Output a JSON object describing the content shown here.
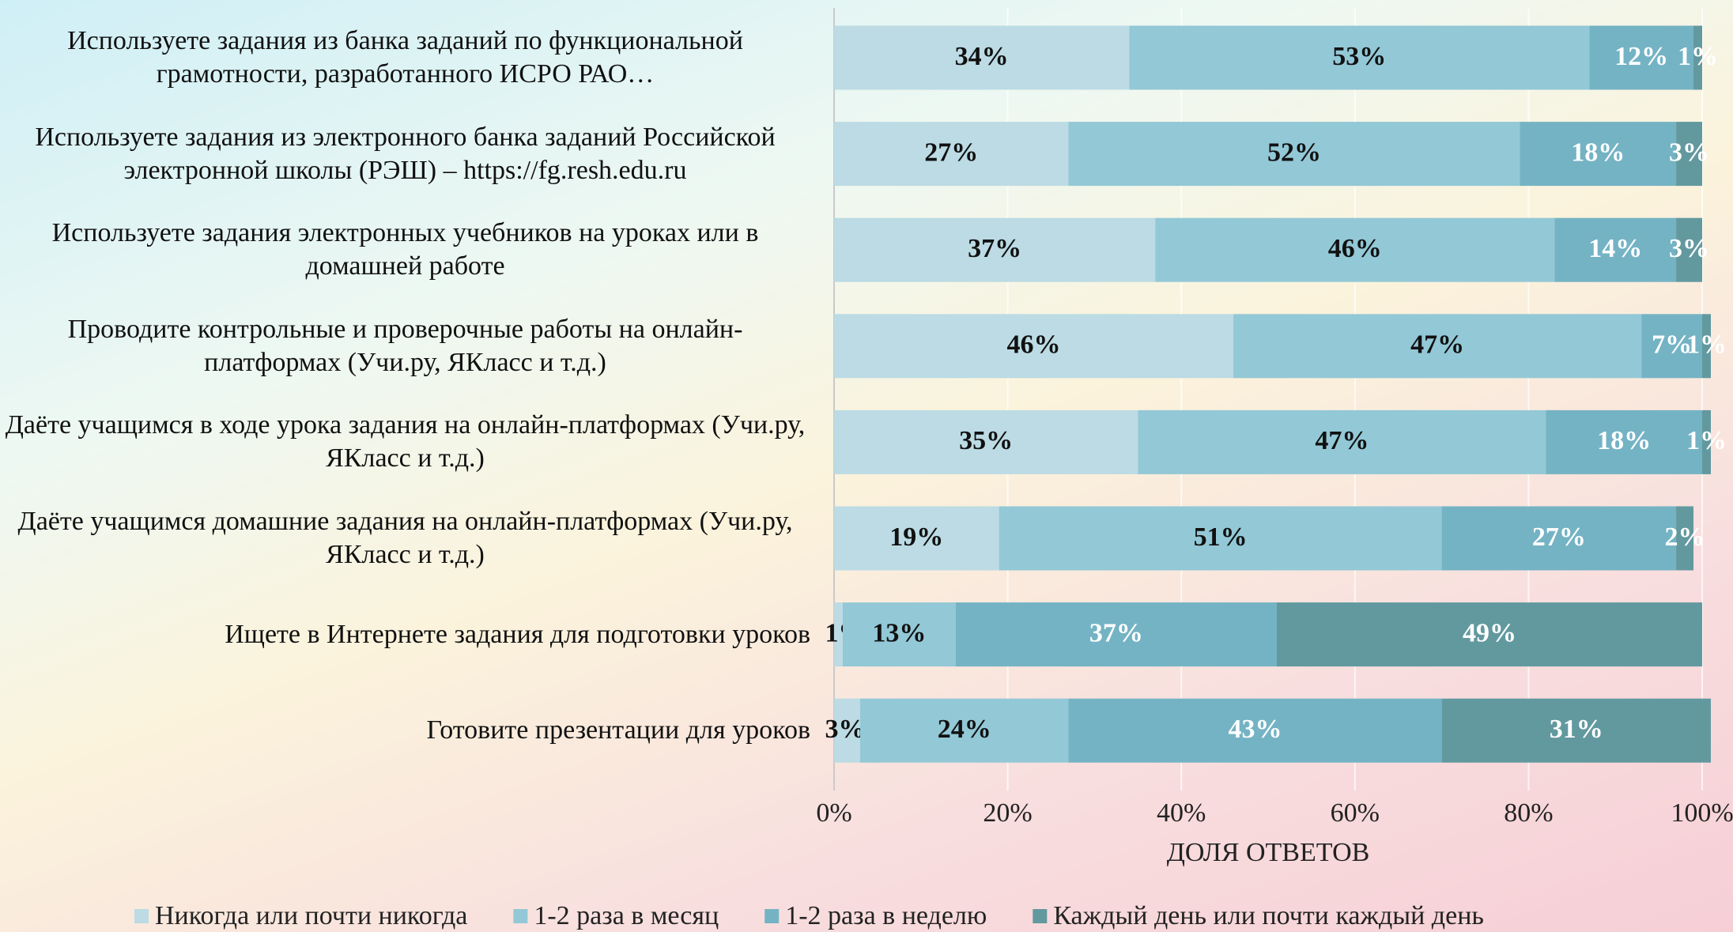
{
  "chart_data": {
    "type": "stacked-barh",
    "categories": [
      "Используете задания из банка заданий по функциональной грамотности, разработанного ИСРО РАО…",
      "Используете задания из электронного банка заданий Российской электронной школы (РЭШ) – https://fg.resh.edu.ru",
      "Используете задания электронных учебников на уроках или в домашней работе",
      "Проводите контрольные и проверочные работы на онлайн-платформах (Учи.ру, ЯКласс и т.д.)",
      "Даёте учащимся в ходе урока задания на онлайн-платформах (Учи.ру, ЯКласс и т.д.)",
      "Даёте учащимся домашние задания на онлайн-платформах (Учи.ру, ЯКласс и т.д.)",
      "Ищете в Интернете задания для подготовки уроков",
      "Готовите презентации для уроков"
    ],
    "series": [
      {
        "name": "Никогда или почти никогда",
        "color": "#bcdbe4",
        "values": [
          34,
          27,
          37,
          46,
          35,
          19,
          1,
          3
        ],
        "value_labels": [
          "34%",
          "27%",
          "37%",
          "46%",
          "35%",
          "19%",
          "1%",
          "3%"
        ]
      },
      {
        "name": "1-2 раза в месяц",
        "color": "#93c8d6",
        "values": [
          53,
          52,
          46,
          47,
          47,
          51,
          13,
          24
        ],
        "value_labels": [
          "53%",
          "52%",
          "46%",
          "47%",
          "47%",
          "51%",
          "13%",
          "24%"
        ]
      },
      {
        "name": "1-2 раза в неделю",
        "color": "#74b3c4",
        "values": [
          12,
          18,
          14,
          7,
          18,
          27,
          37,
          43
        ],
        "value_labels": [
          "12%",
          "18%",
          "14%",
          "7%",
          "18%",
          "27%",
          "37%",
          "43%"
        ]
      },
      {
        "name": "Каждый день или почти каждый день",
        "color": "#62999f",
        "values": [
          1,
          3,
          3,
          1,
          1,
          2,
          49,
          31
        ],
        "value_labels": [
          "1%",
          "3%",
          "3%",
          "1%",
          "1%",
          "2%",
          "49%",
          "31%"
        ]
      }
    ],
    "xlabel": "ДОЛЯ ОТВЕТОВ",
    "xlim": [
      0,
      100
    ],
    "xticks": [
      {
        "value": 0,
        "label": "0%"
      },
      {
        "value": 20,
        "label": "20%"
      },
      {
        "value": 40,
        "label": "40%"
      },
      {
        "value": 60,
        "label": "60%"
      },
      {
        "value": 80,
        "label": "80%"
      },
      {
        "value": 100,
        "label": "100%"
      }
    ],
    "grid": true,
    "legend": "bottom"
  }
}
